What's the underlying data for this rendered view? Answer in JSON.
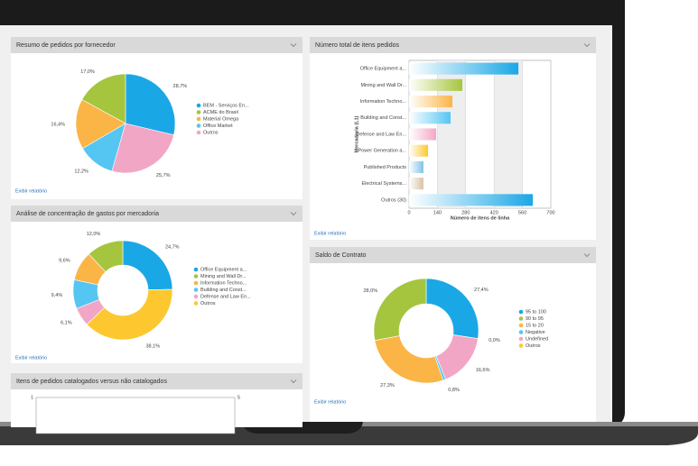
{
  "chart_data": [
    {
      "type": "pie",
      "title": "Resumo de pedidos por fornecedor",
      "link": "Exibir relatório",
      "categories": [
        "BEM - Serviços En...",
        "ACME do Brasil",
        "Material Omega",
        "Office Market",
        "Outros"
      ],
      "values": [
        28.7,
        17.0,
        16.4,
        12.2,
        25.7
      ],
      "value_labels": [
        "28,7%",
        "17,0%",
        "16,4%",
        "12,2%",
        "25,7%"
      ],
      "colors": [
        "#1aa7e6",
        "#a6c53f",
        "#fbb547",
        "#55c5f2",
        "#f2a6c6"
      ]
    },
    {
      "type": "barh",
      "title": "Número total de itens pedidos",
      "link": "Exibir relatório",
      "categories": [
        "Office Equipment a...",
        "Mining and Wall Dr...",
        "Information Techno...",
        "Building and Const...",
        "Defense and Law En...",
        "Power Generation a...",
        "Published Products",
        "Electrical Systems...",
        "Outros (30)"
      ],
      "values": [
        540,
        263,
        214,
        205,
        134,
        94,
        71,
        71,
        611
      ],
      "colors": [
        "#1aa7e6",
        "#a6c53f",
        "#fbb547",
        "#55c5f2",
        "#f2a6c6",
        "#fdc82f",
        "#7fc3e6",
        "#d8c3a5",
        "#1aa7e6"
      ],
      "xlim": [
        0,
        700
      ],
      "xticks": [
        0,
        140,
        280,
        420,
        560,
        700
      ],
      "xlabel": "Número de itens de linha",
      "ylabel": "Mercadoria (L1)",
      "grid": true
    },
    {
      "type": "pie",
      "donut": true,
      "title": "Análise de concentração de gastos por mercadoria",
      "link": "Exibir relatório",
      "categories": [
        "Office Equipment a...",
        "Mining and Wall Dr...",
        "Information Techno...",
        "Building and Const...",
        "Defense and Law En...",
        "Outros"
      ],
      "values": [
        24.7,
        12.0,
        9.6,
        9.4,
        6.1,
        38.1
      ],
      "value_labels": [
        "24,7%",
        "12,0%",
        "9,6%",
        "9,4%",
        "6,1%",
        "38,1%"
      ],
      "colors": [
        "#1aa7e6",
        "#a6c53f",
        "#fbb547",
        "#55c5f2",
        "#f2a6c6",
        "#fdc82f"
      ]
    },
    {
      "type": "pie",
      "donut": true,
      "title": "Saldo de Contrato",
      "link": "Exibir relatório",
      "categories": [
        "95 to 100",
        "90 to 95",
        "15 to 20",
        "Negative",
        "Undefined",
        "Outros"
      ],
      "values": [
        27.4,
        28.0,
        27.3,
        0.8,
        16.6,
        0.0
      ],
      "value_labels": [
        "27,4%",
        "28,0%",
        "27,3%",
        "0,8%",
        "16,6%",
        "0,0%"
      ],
      "colors": [
        "#1aa7e6",
        "#a6c53f",
        "#fbb547",
        "#55c5f2",
        "#f2a6c6",
        "#fdc82f"
      ]
    },
    {
      "type": "bar",
      "title": "Itens de pedidos catalogados versus não catalogados",
      "ylim": [
        0,
        1
      ],
      "yticks": [
        1
      ],
      "y2lim": [
        0,
        5
      ],
      "y2ticks": [
        5
      ]
    }
  ]
}
